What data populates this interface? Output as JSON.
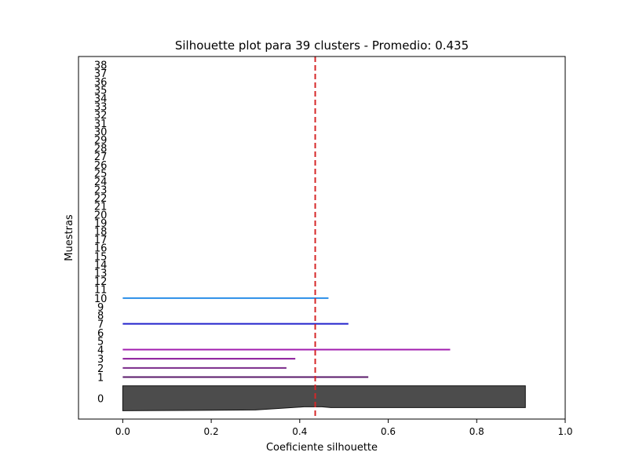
{
  "chart_data": {
    "type": "silhouette",
    "title": "Silhouette plot para 39 clusters - Promedio: 0.435",
    "xlabel": "Coeficiente silhouette",
    "ylabel": "Muestras",
    "xlim": [
      -0.1,
      1.0
    ],
    "xticks": [
      {
        "v": 0.0,
        "label": "0.0"
      },
      {
        "v": 0.2,
        "label": "0.2"
      },
      {
        "v": 0.4,
        "label": "0.4"
      },
      {
        "v": 0.6,
        "label": "0.6"
      },
      {
        "v": 0.8,
        "label": "0.8"
      },
      {
        "v": 1.0,
        "label": "1.0"
      }
    ],
    "average_silhouette": 0.435,
    "average_line_color": "#d62728",
    "grid": false,
    "clusters": [
      {
        "label": "0",
        "n_samples": 30,
        "max": 0.91,
        "min": 0.0,
        "color": "#4c4c4c"
      },
      {
        "label": "1",
        "n_samples": 1,
        "max": 0.555,
        "color": "#5a1a6a"
      },
      {
        "label": "2",
        "n_samples": 1,
        "max": 0.37,
        "color": "#7a2a8a"
      },
      {
        "label": "3",
        "n_samples": 1,
        "max": 0.39,
        "color": "#8a1a9a"
      },
      {
        "label": "4",
        "n_samples": 1,
        "max": 0.74,
        "color": "#a21caf"
      },
      {
        "label": "5",
        "n_samples": 0,
        "color": "#a21caf"
      },
      {
        "label": "6",
        "n_samples": 0,
        "color": "#7a24c0"
      },
      {
        "label": "7",
        "n_samples": 1,
        "max": 0.51,
        "color": "#2222cc"
      },
      {
        "label": "8",
        "n_samples": 0,
        "color": "#1f3fd0"
      },
      {
        "label": "9",
        "n_samples": 0,
        "color": "#2a6ad8"
      },
      {
        "label": "10",
        "n_samples": 1,
        "max": 0.465,
        "color": "#2a8ee8"
      },
      {
        "label": "11",
        "n_samples": 0
      },
      {
        "label": "12",
        "n_samples": 0
      },
      {
        "label": "13",
        "n_samples": 0
      },
      {
        "label": "14",
        "n_samples": 0
      },
      {
        "label": "15",
        "n_samples": 0
      },
      {
        "label": "16",
        "n_samples": 0
      },
      {
        "label": "17",
        "n_samples": 0
      },
      {
        "label": "18",
        "n_samples": 0
      },
      {
        "label": "19",
        "n_samples": 0
      },
      {
        "label": "20",
        "n_samples": 0
      },
      {
        "label": "21",
        "n_samples": 0
      },
      {
        "label": "22",
        "n_samples": 0
      },
      {
        "label": "23",
        "n_samples": 0
      },
      {
        "label": "24",
        "n_samples": 0
      },
      {
        "label": "25",
        "n_samples": 0
      },
      {
        "label": "26",
        "n_samples": 0
      },
      {
        "label": "27",
        "n_samples": 0
      },
      {
        "label": "28",
        "n_samples": 0
      },
      {
        "label": "29",
        "n_samples": 0
      },
      {
        "label": "30",
        "n_samples": 0
      },
      {
        "label": "31",
        "n_samples": 0
      },
      {
        "label": "32",
        "n_samples": 0
      },
      {
        "label": "33",
        "n_samples": 0
      },
      {
        "label": "34",
        "n_samples": 0
      },
      {
        "label": "35",
        "n_samples": 0
      },
      {
        "label": "36",
        "n_samples": 0
      },
      {
        "label": "37",
        "n_samples": 0
      },
      {
        "label": "38",
        "n_samples": 0
      }
    ]
  }
}
